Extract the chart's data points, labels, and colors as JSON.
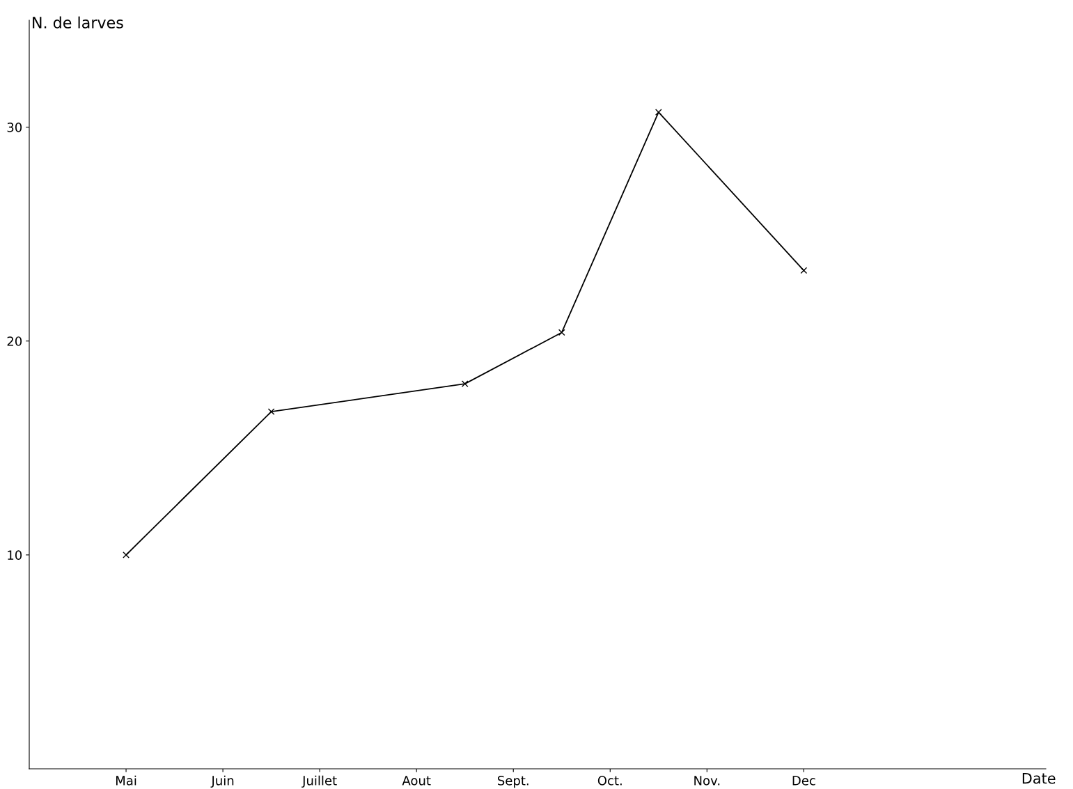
{
  "chart_data": {
    "type": "line",
    "annotations": [
      "Date"
    ],
    "ylabel": "N. de larves",
    "categories": [
      "Mai",
      null,
      "Juin",
      null,
      "Juillet",
      null,
      "Aout",
      null,
      "Sept.",
      null,
      "Oct.",
      null,
      "Nov.",
      null,
      "Dec"
    ],
    "values": [
      10,
      null,
      null,
      16.7,
      null,
      null,
      null,
      18,
      null,
      20.4,
      null,
      30.7,
      null,
      null,
      23.3
    ],
    "color": "#000000",
    "marker": "cross",
    "line_style": "solid",
    "grid": false,
    "ylim": [
      0,
      35
    ],
    "yticks": [
      10,
      20,
      30
    ]
  }
}
